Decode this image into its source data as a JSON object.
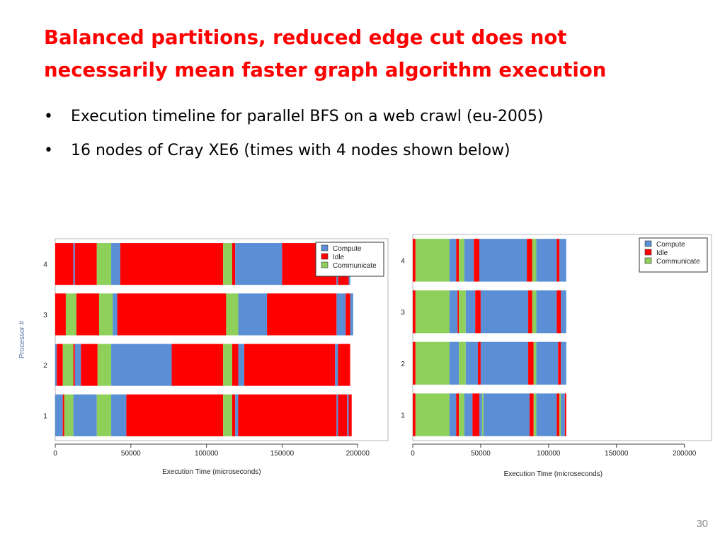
{
  "slide": {
    "title": "Balanced partitions, reduced edge cut does not necessarily mean faster graph algorithm execution",
    "bullets": [
      "Execution timeline for parallel BFS on a web crawl (eu-2005)",
      "16 nodes of Cray XE6 (times with 4 nodes shown below)"
    ],
    "page_number": "30"
  },
  "colors": {
    "Compute": "#5a8fd5",
    "Idle": "#ff0000",
    "Communicate": "#8ed05a"
  },
  "chart_data": [
    {
      "type": "bar",
      "orientation": "horizontal-stacked-timeline",
      "xlabel": "Execution Time (microseconds)",
      "ylabel": "Processor #",
      "xlim": [
        0,
        220000
      ],
      "xticks": [
        0,
        50000,
        100000,
        150000,
        200000
      ],
      "categories": [
        "1",
        "2",
        "3",
        "4"
      ],
      "legend": {
        "placement": "top-right",
        "entries": [
          "Compute",
          "Idle",
          "Communicate"
        ]
      },
      "grid": false,
      "series": [
        {
          "processor": "1",
          "segments": [
            {
              "state": "Compute",
              "start": 0,
              "end": 5000
            },
            {
              "state": "Idle",
              "start": 5000,
              "end": 6000
            },
            {
              "state": "Communicate",
              "start": 6000,
              "end": 12000
            },
            {
              "state": "Compute",
              "start": 12000,
              "end": 27500
            },
            {
              "state": "Communicate",
              "start": 27500,
              "end": 37000
            },
            {
              "state": "Compute",
              "start": 37000,
              "end": 47000
            },
            {
              "state": "Idle",
              "start": 47000,
              "end": 111000
            },
            {
              "state": "Communicate",
              "start": 111000,
              "end": 117000
            },
            {
              "state": "Idle",
              "start": 117000,
              "end": 119000
            },
            {
              "state": "Compute",
              "start": 119000,
              "end": 121000
            },
            {
              "state": "Idle",
              "start": 121000,
              "end": 186000
            },
            {
              "state": "Compute",
              "start": 186000,
              "end": 187000
            },
            {
              "state": "Idle",
              "start": 187000,
              "end": 193000
            },
            {
              "state": "Compute",
              "start": 193000,
              "end": 194000
            },
            {
              "state": "Idle",
              "start": 194000,
              "end": 196000
            }
          ]
        },
        {
          "processor": "2",
          "segments": [
            {
              "state": "Compute",
              "start": 0,
              "end": 1000
            },
            {
              "state": "Idle",
              "start": 1000,
              "end": 5000
            },
            {
              "state": "Communicate",
              "start": 5000,
              "end": 12000
            },
            {
              "state": "Idle",
              "start": 12000,
              "end": 13000
            },
            {
              "state": "Compute",
              "start": 13000,
              "end": 17000
            },
            {
              "state": "Idle",
              "start": 17000,
              "end": 28000
            },
            {
              "state": "Communicate",
              "start": 28000,
              "end": 37000
            },
            {
              "state": "Compute",
              "start": 37000,
              "end": 77000
            },
            {
              "state": "Idle",
              "start": 77000,
              "end": 111000
            },
            {
              "state": "Communicate",
              "start": 111000,
              "end": 117000
            },
            {
              "state": "Idle",
              "start": 117000,
              "end": 121000
            },
            {
              "state": "Compute",
              "start": 121000,
              "end": 125000
            },
            {
              "state": "Idle",
              "start": 125000,
              "end": 185000
            },
            {
              "state": "Compute",
              "start": 185000,
              "end": 187000
            },
            {
              "state": "Idle",
              "start": 187000,
              "end": 195000
            }
          ]
        },
        {
          "processor": "3",
          "segments": [
            {
              "state": "Idle",
              "start": 0,
              "end": 7000
            },
            {
              "state": "Communicate",
              "start": 7000,
              "end": 14000
            },
            {
              "state": "Idle",
              "start": 14000,
              "end": 29000
            },
            {
              "state": "Communicate",
              "start": 29000,
              "end": 38000
            },
            {
              "state": "Compute",
              "start": 38000,
              "end": 41000
            },
            {
              "state": "Idle",
              "start": 41000,
              "end": 113000
            },
            {
              "state": "Communicate",
              "start": 113000,
              "end": 121000
            },
            {
              "state": "Compute",
              "start": 121000,
              "end": 140000
            },
            {
              "state": "Idle",
              "start": 140000,
              "end": 186000
            },
            {
              "state": "Compute",
              "start": 186000,
              "end": 192000
            },
            {
              "state": "Idle",
              "start": 192000,
              "end": 195000
            },
            {
              "state": "Compute",
              "start": 195000,
              "end": 197000
            }
          ]
        },
        {
          "processor": "4",
          "segments": [
            {
              "state": "Idle",
              "start": 0,
              "end": 12000
            },
            {
              "state": "Compute",
              "start": 12000,
              "end": 13000
            },
            {
              "state": "Idle",
              "start": 13000,
              "end": 27500
            },
            {
              "state": "Communicate",
              "start": 27500,
              "end": 37000
            },
            {
              "state": "Compute",
              "start": 37000,
              "end": 43000
            },
            {
              "state": "Idle",
              "start": 43000,
              "end": 111000
            },
            {
              "state": "Communicate",
              "start": 111000,
              "end": 117000
            },
            {
              "state": "Idle",
              "start": 117000,
              "end": 119000
            },
            {
              "state": "Compute",
              "start": 119000,
              "end": 150000
            },
            {
              "state": "Idle",
              "start": 150000,
              "end": 186000
            },
            {
              "state": "Compute",
              "start": 186000,
              "end": 187000
            },
            {
              "state": "Idle",
              "start": 187000,
              "end": 194000
            },
            {
              "state": "Compute",
              "start": 194000,
              "end": 195000
            }
          ]
        }
      ]
    },
    {
      "type": "bar",
      "orientation": "horizontal-stacked-timeline",
      "xlabel": "Execution Time (microseconds)",
      "ylabel": "",
      "xlim": [
        0,
        220000
      ],
      "xticks": [
        0,
        50000,
        100000,
        150000,
        200000
      ],
      "categories": [
        "1",
        "2",
        "3",
        "4"
      ],
      "legend": {
        "placement": "top-right",
        "entries": [
          "Compute",
          "Idle",
          "Communicate"
        ]
      },
      "grid": false,
      "series": [
        {
          "processor": "1",
          "segments": [
            {
              "state": "Idle",
              "start": 0,
              "end": 2000
            },
            {
              "state": "Communicate",
              "start": 2000,
              "end": 27000
            },
            {
              "state": "Compute",
              "start": 27000,
              "end": 32000
            },
            {
              "state": "Idle",
              "start": 32000,
              "end": 34000
            },
            {
              "state": "Communicate",
              "start": 34000,
              "end": 38000
            },
            {
              "state": "Compute",
              "start": 38000,
              "end": 44000
            },
            {
              "state": "Idle",
              "start": 44000,
              "end": 49000
            },
            {
              "state": "Compute",
              "start": 49000,
              "end": 51000
            },
            {
              "state": "Communicate",
              "start": 51000,
              "end": 52000
            },
            {
              "state": "Compute",
              "start": 52000,
              "end": 86000
            },
            {
              "state": "Idle",
              "start": 86000,
              "end": 89000
            },
            {
              "state": "Communicate",
              "start": 89000,
              "end": 91000
            },
            {
              "state": "Compute",
              "start": 91000,
              "end": 106000
            },
            {
              "state": "Idle",
              "start": 106000,
              "end": 108000
            },
            {
              "state": "Communicate",
              "start": 108000,
              "end": 109000
            },
            {
              "state": "Compute",
              "start": 109000,
              "end": 112000
            },
            {
              "state": "Idle",
              "start": 112000,
              "end": 113000
            }
          ]
        },
        {
          "processor": "2",
          "segments": [
            {
              "state": "Idle",
              "start": 0,
              "end": 2000
            },
            {
              "state": "Communicate",
              "start": 2000,
              "end": 27000
            },
            {
              "state": "Compute",
              "start": 27000,
              "end": 34000
            },
            {
              "state": "Communicate",
              "start": 34000,
              "end": 39000
            },
            {
              "state": "Compute",
              "start": 39000,
              "end": 48000
            },
            {
              "state": "Idle",
              "start": 48000,
              "end": 50000
            },
            {
              "state": "Compute",
              "start": 50000,
              "end": 85000
            },
            {
              "state": "Idle",
              "start": 85000,
              "end": 89000
            },
            {
              "state": "Communicate",
              "start": 89000,
              "end": 91000
            },
            {
              "state": "Compute",
              "start": 91000,
              "end": 107000
            },
            {
              "state": "Idle",
              "start": 107000,
              "end": 109000
            },
            {
              "state": "Compute",
              "start": 109000,
              "end": 113000
            }
          ]
        },
        {
          "processor": "3",
          "segments": [
            {
              "state": "Idle",
              "start": 0,
              "end": 2000
            },
            {
              "state": "Communicate",
              "start": 2000,
              "end": 27000
            },
            {
              "state": "Compute",
              "start": 27000,
              "end": 33000
            },
            {
              "state": "Idle",
              "start": 33000,
              "end": 34000
            },
            {
              "state": "Communicate",
              "start": 34000,
              "end": 39000
            },
            {
              "state": "Compute",
              "start": 39000,
              "end": 46000
            },
            {
              "state": "Idle",
              "start": 46000,
              "end": 50000
            },
            {
              "state": "Compute",
              "start": 50000,
              "end": 85000
            },
            {
              "state": "Idle",
              "start": 85000,
              "end": 88000
            },
            {
              "state": "Communicate",
              "start": 88000,
              "end": 91000
            },
            {
              "state": "Compute",
              "start": 91000,
              "end": 106000
            },
            {
              "state": "Idle",
              "start": 106000,
              "end": 109000
            },
            {
              "state": "Compute",
              "start": 109000,
              "end": 113000
            }
          ]
        },
        {
          "processor": "4",
          "segments": [
            {
              "state": "Idle",
              "start": 0,
              "end": 2000
            },
            {
              "state": "Communicate",
              "start": 2000,
              "end": 27000
            },
            {
              "state": "Compute",
              "start": 27000,
              "end": 32000
            },
            {
              "state": "Idle",
              "start": 32000,
              "end": 34000
            },
            {
              "state": "Communicate",
              "start": 34000,
              "end": 38000
            },
            {
              "state": "Compute",
              "start": 38000,
              "end": 45000
            },
            {
              "state": "Idle",
              "start": 45000,
              "end": 49000
            },
            {
              "state": "Compute",
              "start": 49000,
              "end": 84000
            },
            {
              "state": "Idle",
              "start": 84000,
              "end": 88000
            },
            {
              "state": "Communicate",
              "start": 88000,
              "end": 91000
            },
            {
              "state": "Compute",
              "start": 91000,
              "end": 106000
            },
            {
              "state": "Idle",
              "start": 106000,
              "end": 108000
            },
            {
              "state": "Compute",
              "start": 108000,
              "end": 113000
            }
          ]
        }
      ]
    }
  ]
}
